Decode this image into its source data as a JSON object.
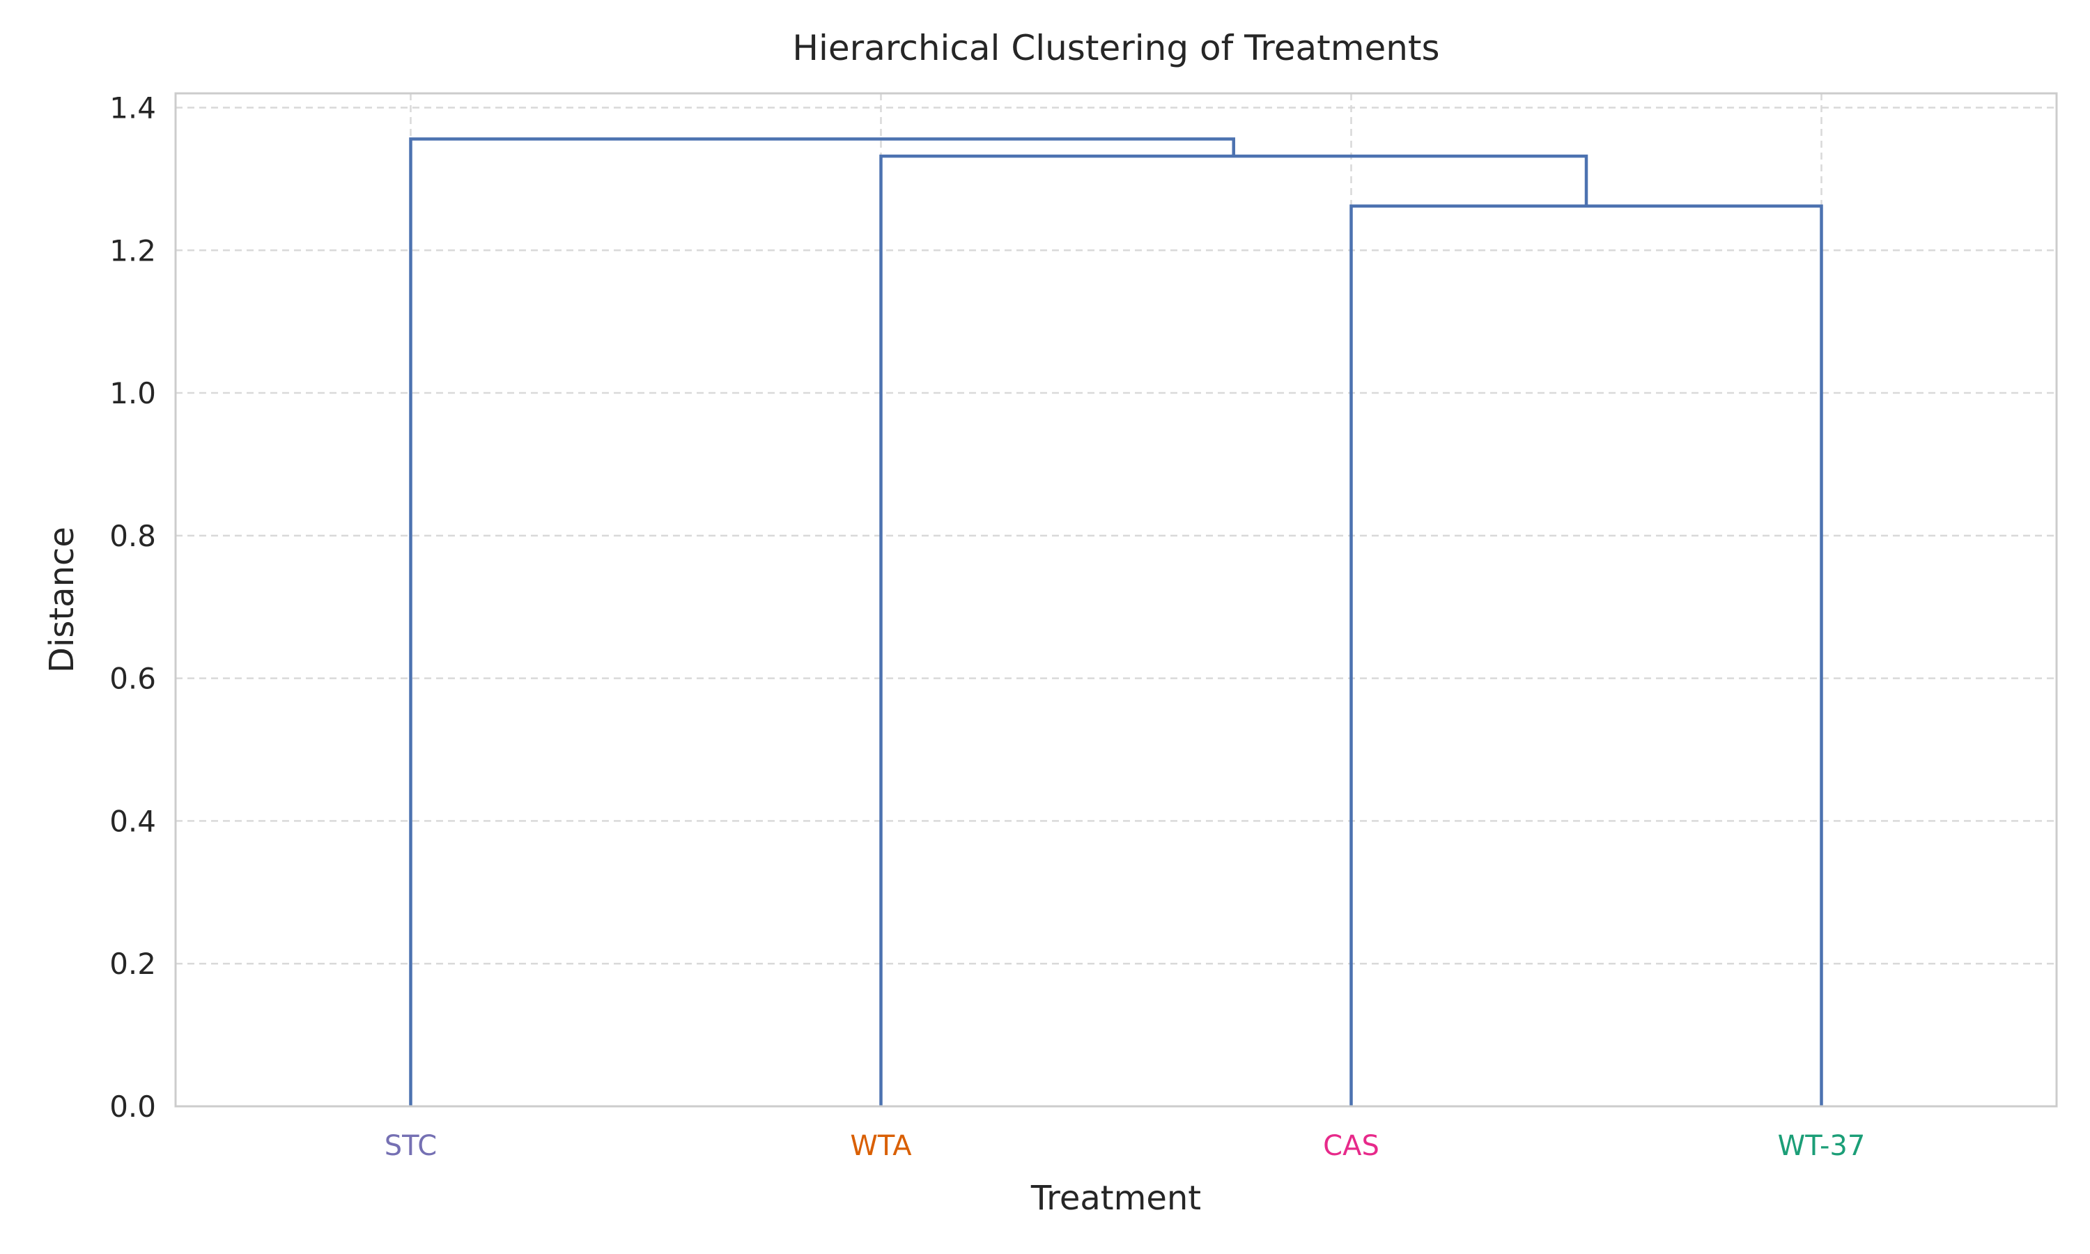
{
  "chart_data": {
    "type": "dendrogram",
    "title": "Hierarchical Clustering of Treatments",
    "xlabel": "Treatment",
    "ylabel": "Distance",
    "ylim": [
      0,
      1.42
    ],
    "yticks": [
      "0.0",
      "0.2",
      "0.4",
      "0.6",
      "0.8",
      "1.0",
      "1.2",
      "1.4"
    ],
    "grid": true,
    "leaves": [
      {
        "label": "STC",
        "color": "#7570b3"
      },
      {
        "label": "WTA",
        "color": "#d95f02"
      },
      {
        "label": "CAS",
        "color": "#e7298a"
      },
      {
        "label": "WT-37",
        "color": "#1b9e77"
      }
    ],
    "merges": [
      {
        "left": "CAS",
        "right": "WT-37",
        "height": 1.262
      },
      {
        "left": "WTA",
        "right": "CAS+WT-37",
        "height": 1.332
      },
      {
        "left": "STC",
        "right": "WTA+CAS+WT-37",
        "height": 1.356
      }
    ],
    "link_color": "#4c72b0"
  }
}
